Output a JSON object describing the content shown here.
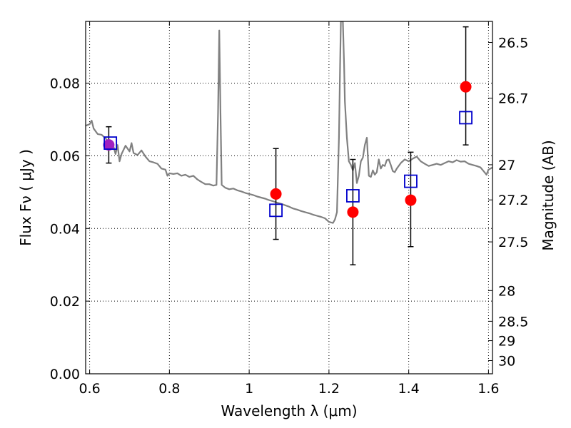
{
  "chart_data": {
    "type": "scatter",
    "xlabel": "Wavelength  λ (μm)",
    "ylabel": "Flux  Fν  ( μJy )",
    "ylabel_right": "Magnitude (AB)",
    "xlim": [
      0.59,
      1.61
    ],
    "ylim": [
      0.0,
      0.097
    ],
    "x_ticks": [
      0.6,
      0.8,
      1.0,
      1.2,
      1.4,
      1.6
    ],
    "x_tick_labels": [
      "0.6",
      "0.8",
      "1",
      "1.2",
      "1.4",
      "1.6"
    ],
    "y_ticks": [
      0.0,
      0.02,
      0.04,
      0.06,
      0.08
    ],
    "y_tick_labels": [
      "0.00",
      "0.02",
      "0.04",
      "0.06",
      "0.08"
    ],
    "right_ticks": [
      {
        "label": "26.5",
        "value": 26.5
      },
      {
        "label": "26.7",
        "value": 26.7
      },
      {
        "label": "27",
        "value": 27.0
      },
      {
        "label": "27.2",
        "value": 27.2
      },
      {
        "label": "27.5",
        "value": 27.5
      },
      {
        "label": "28",
        "value": 28.0
      },
      {
        "label": "28.5",
        "value": 28.5
      },
      {
        "label": "29",
        "value": 29.0
      },
      {
        "label": "30",
        "value": 30.0
      }
    ],
    "grid": true,
    "colors": {
      "model_line": "#808080",
      "observed_points": "#ff0000",
      "model_squares": "#0000cc",
      "error_bars": "#000000",
      "overlap_point": "#a020c0"
    },
    "series": [
      {
        "kind": "line",
        "points": [
          [
            0.59,
            0.0683
          ],
          [
            0.6,
            0.0687
          ],
          [
            0.605,
            0.0697
          ],
          [
            0.61,
            0.0675
          ],
          [
            0.62,
            0.066
          ],
          [
            0.63,
            0.0658
          ],
          [
            0.64,
            0.0648
          ],
          [
            0.65,
            0.0635
          ],
          [
            0.66,
            0.0625
          ],
          [
            0.665,
            0.0605
          ],
          [
            0.67,
            0.063
          ],
          [
            0.675,
            0.0585
          ],
          [
            0.68,
            0.0605
          ],
          [
            0.69,
            0.0628
          ],
          [
            0.7,
            0.0612
          ],
          [
            0.705,
            0.0635
          ],
          [
            0.71,
            0.0608
          ],
          [
            0.72,
            0.0602
          ],
          [
            0.73,
            0.0615
          ],
          [
            0.74,
            0.0598
          ],
          [
            0.75,
            0.0585
          ],
          [
            0.76,
            0.0582
          ],
          [
            0.77,
            0.0578
          ],
          [
            0.78,
            0.0565
          ],
          [
            0.79,
            0.0562
          ],
          [
            0.795,
            0.0545
          ],
          [
            0.8,
            0.0552
          ],
          [
            0.81,
            0.055
          ],
          [
            0.82,
            0.0552
          ],
          [
            0.83,
            0.0545
          ],
          [
            0.84,
            0.0548
          ],
          [
            0.85,
            0.0542
          ],
          [
            0.86,
            0.0545
          ],
          [
            0.87,
            0.0535
          ],
          [
            0.88,
            0.0528
          ],
          [
            0.89,
            0.0522
          ],
          [
            0.9,
            0.0522
          ],
          [
            0.91,
            0.0518
          ],
          [
            0.918,
            0.052
          ],
          [
            0.922,
            0.072
          ],
          [
            0.925,
            0.0945
          ],
          [
            0.928,
            0.072
          ],
          [
            0.931,
            0.052
          ],
          [
            0.94,
            0.0512
          ],
          [
            0.95,
            0.0508
          ],
          [
            0.96,
            0.051
          ],
          [
            0.97,
            0.0505
          ],
          [
            0.98,
            0.0502
          ],
          [
            0.99,
            0.0498
          ],
          [
            1.0,
            0.0495
          ],
          [
            1.01,
            0.0492
          ],
          [
            1.02,
            0.0488
          ],
          [
            1.03,
            0.0485
          ],
          [
            1.04,
            0.0482
          ],
          [
            1.05,
            0.0478
          ],
          [
            1.06,
            0.0475
          ],
          [
            1.07,
            0.0471
          ],
          [
            1.08,
            0.0468
          ],
          [
            1.09,
            0.0464
          ],
          [
            1.1,
            0.046
          ],
          [
            1.11,
            0.0455
          ],
          [
            1.12,
            0.0452
          ],
          [
            1.13,
            0.0448
          ],
          [
            1.14,
            0.0445
          ],
          [
            1.15,
            0.0442
          ],
          [
            1.16,
            0.0438
          ],
          [
            1.17,
            0.0435
          ],
          [
            1.18,
            0.0432
          ],
          [
            1.19,
            0.0428
          ],
          [
            1.2,
            0.0418
          ],
          [
            1.21,
            0.0415
          ],
          [
            1.215,
            0.0425
          ],
          [
            1.22,
            0.0445
          ],
          [
            1.225,
            0.065
          ],
          [
            1.228,
            0.085
          ],
          [
            1.23,
            0.097
          ],
          [
            1.235,
            0.097
          ],
          [
            1.238,
            0.085
          ],
          [
            1.24,
            0.075
          ],
          [
            1.245,
            0.065
          ],
          [
            1.25,
            0.0585
          ],
          [
            1.255,
            0.0575
          ],
          [
            1.26,
            0.056
          ],
          [
            1.265,
            0.058
          ],
          [
            1.27,
            0.0525
          ],
          [
            1.275,
            0.0545
          ],
          [
            1.28,
            0.0585
          ],
          [
            1.285,
            0.0595
          ],
          [
            1.29,
            0.063
          ],
          [
            1.295,
            0.065
          ],
          [
            1.3,
            0.0545
          ],
          [
            1.305,
            0.0542
          ],
          [
            1.31,
            0.056
          ],
          [
            1.315,
            0.0548
          ],
          [
            1.32,
            0.0555
          ],
          [
            1.325,
            0.059
          ],
          [
            1.33,
            0.0565
          ],
          [
            1.335,
            0.0575
          ],
          [
            1.34,
            0.0572
          ],
          [
            1.345,
            0.0588
          ],
          [
            1.35,
            0.059
          ],
          [
            1.355,
            0.0575
          ],
          [
            1.36,
            0.0558
          ],
          [
            1.365,
            0.0555
          ],
          [
            1.37,
            0.0565
          ],
          [
            1.38,
            0.058
          ],
          [
            1.39,
            0.059
          ],
          [
            1.4,
            0.0585
          ],
          [
            1.41,
            0.0592
          ],
          [
            1.42,
            0.0598
          ],
          [
            1.43,
            0.0585
          ],
          [
            1.44,
            0.0578
          ],
          [
            1.45,
            0.0572
          ],
          [
            1.46,
            0.0575
          ],
          [
            1.47,
            0.0578
          ],
          [
            1.48,
            0.0575
          ],
          [
            1.49,
            0.058
          ],
          [
            1.5,
            0.0585
          ],
          [
            1.51,
            0.0582
          ],
          [
            1.52,
            0.0588
          ],
          [
            1.53,
            0.0584
          ],
          [
            1.54,
            0.0585
          ],
          [
            1.55,
            0.0578
          ],
          [
            1.56,
            0.0575
          ],
          [
            1.57,
            0.0572
          ],
          [
            1.58,
            0.0568
          ],
          [
            1.59,
            0.0555
          ],
          [
            1.595,
            0.0548
          ],
          [
            1.6,
            0.0562
          ],
          [
            1.61,
            0.0568
          ]
        ]
      },
      {
        "kind": "points",
        "marker": "circle",
        "x": [
          0.648,
          1.067,
          1.26,
          1.405,
          1.543
        ],
        "y": [
          0.063,
          0.0495,
          0.0445,
          0.0478,
          0.079
        ],
        "yerr_low": [
          0.058,
          0.037,
          0.03,
          0.035,
          0.063
        ],
        "yerr_high": [
          0.068,
          0.062,
          0.059,
          0.061,
          0.0955
        ]
      },
      {
        "kind": "points",
        "marker": "square",
        "x": [
          0.652,
          1.067,
          1.26,
          1.405,
          1.543
        ],
        "y": [
          0.0635,
          0.045,
          0.049,
          0.053,
          0.0705
        ]
      }
    ]
  }
}
